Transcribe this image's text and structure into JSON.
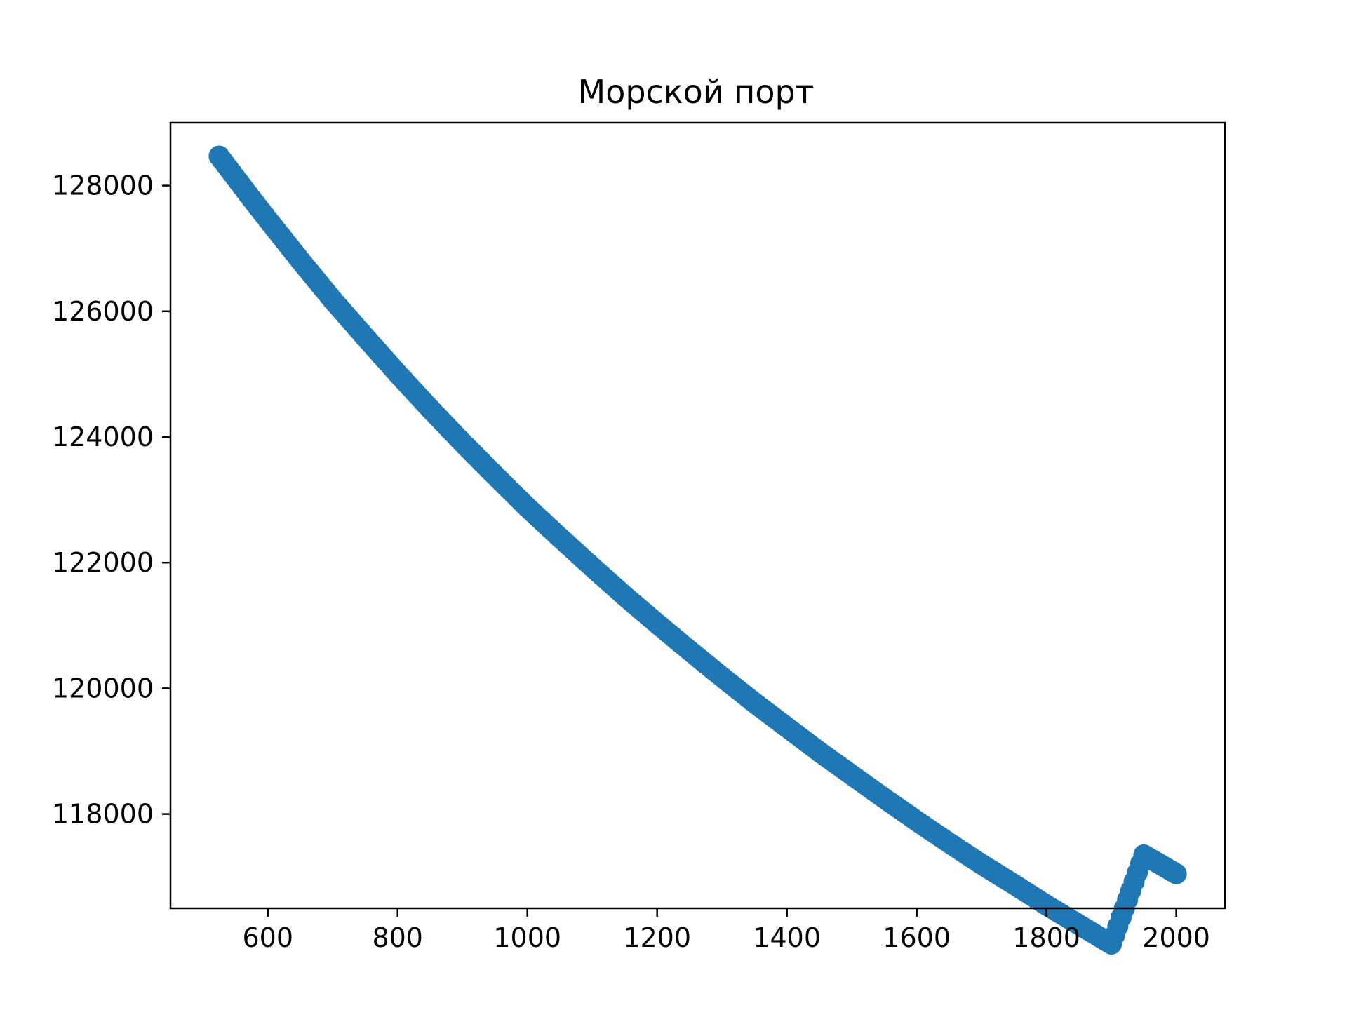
{
  "chart_data": {
    "type": "scatter",
    "title": "Морской порт",
    "xlabel": "",
    "ylabel": "",
    "xlim": [
      450,
      2075
    ],
    "ylim": [
      116500,
      129000
    ],
    "x_ticks": [
      600,
      800,
      1000,
      1200,
      1400,
      1600,
      1800,
      2000
    ],
    "y_ticks": [
      118000,
      120000,
      122000,
      124000,
      126000,
      128000
    ],
    "grid": false,
    "legend": "none",
    "color": "#1f77b4",
    "series": [
      {
        "x": [
          525,
          550,
          575,
          600,
          650,
          700,
          750,
          800,
          850,
          900,
          950,
          1000,
          1050,
          1100,
          1150,
          1200,
          1250,
          1300,
          1350,
          1400,
          1450,
          1500,
          1550,
          1600,
          1650,
          1700,
          1750,
          1800,
          1850,
          1900,
          1950,
          2000
        ],
        "y": [
          128470,
          128130,
          127790,
          127460,
          126810,
          126180,
          125590,
          125010,
          124450,
          123910,
          123390,
          122880,
          122400,
          121930,
          121470,
          121030,
          120600,
          120180,
          119770,
          119380,
          118990,
          118620,
          118250,
          117890,
          117540,
          117200,
          116880,
          116550,
          116240,
          115930,
          117350,
          117050
        ]
      }
    ]
  }
}
